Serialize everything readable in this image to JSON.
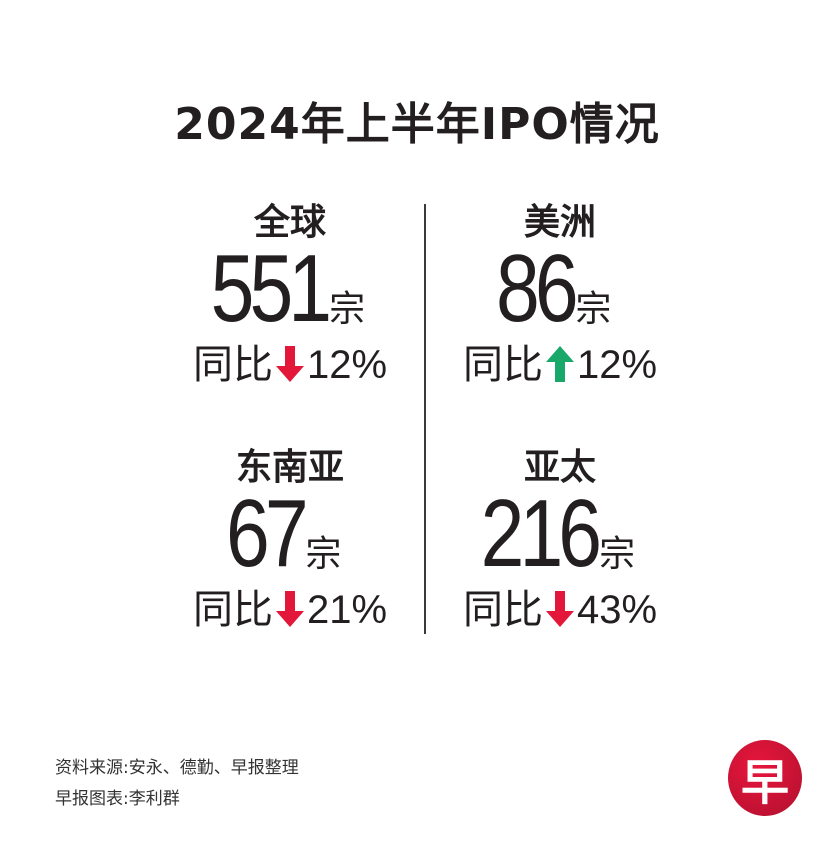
{
  "title": "2024年上半年IPO情况",
  "colors": {
    "down": "#e3173a",
    "up": "#1aa76a",
    "logo": "#c8102e"
  },
  "regions": [
    {
      "name": "全球",
      "count": "551",
      "unit": "宗",
      "yoy_label": "同比",
      "direction": "down",
      "direction_icon": "arrow-down-icon",
      "change": "12%"
    },
    {
      "name": "美洲",
      "count": "86",
      "unit": "宗",
      "yoy_label": "同比",
      "direction": "up",
      "direction_icon": "arrow-up-icon",
      "change": "12%"
    },
    {
      "name": "东南亚",
      "count": "67",
      "unit": "宗",
      "yoy_label": "同比",
      "direction": "down",
      "direction_icon": "arrow-down-icon",
      "change": "21%"
    },
    {
      "name": "亚太",
      "count": "216",
      "unit": "宗",
      "yoy_label": "同比",
      "direction": "down",
      "direction_icon": "arrow-down-icon",
      "change": "43%"
    }
  ],
  "footer": {
    "source": "资料来源:安永、德勤、早报整理",
    "credit": "早报图表:李利群"
  },
  "logo": {
    "text": "早"
  }
}
